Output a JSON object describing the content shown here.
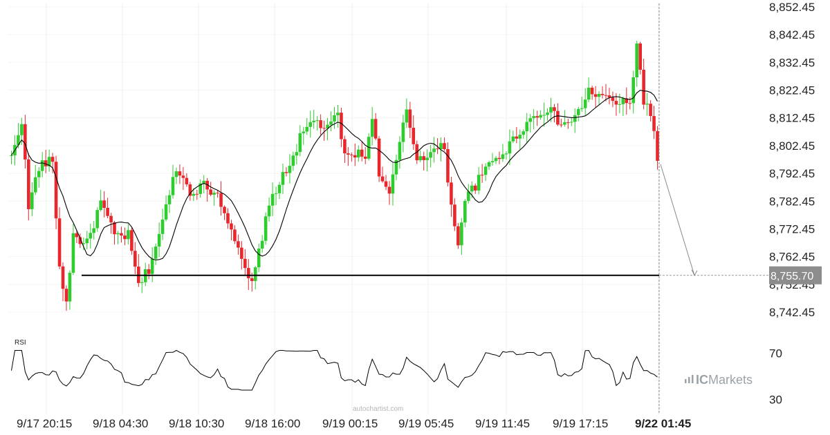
{
  "chart_data": {
    "type": "candlestick",
    "price_axis": {
      "ticks": [
        "8,852.45",
        "8,842.45",
        "8,832.45",
        "8,822.45",
        "8,812.45",
        "8,802.45",
        "8,792.45",
        "8,782.45",
        "8,772.45",
        "8,762.45",
        "8,752.45",
        "8,742.45"
      ],
      "tick_values": [
        8852.45,
        8842.45,
        8832.45,
        8822.45,
        8812.45,
        8802.45,
        8792.45,
        8782.45,
        8772.45,
        8762.45,
        8752.45,
        8742.45
      ],
      "range": [
        8737,
        8853
      ]
    },
    "time_axis": {
      "labels": [
        "9/17 20:15",
        "9/18 04:30",
        "9/18 10:30",
        "9/18 16:00",
        "9/19 00:15",
        "9/19 05:45",
        "9/19 11:45",
        "9/19 17:15",
        "9/22 01:45"
      ],
      "highlight": "9/22 01:45"
    },
    "support_level": 8755.7,
    "target_label": "8,755.70",
    "rsi": {
      "label": "RSI",
      "levels": [
        "70",
        "30"
      ],
      "level_values": [
        70,
        30
      ],
      "range": [
        20,
        80
      ]
    },
    "grid": true,
    "colors": {
      "up": "#2ecc2e",
      "down": "#e8262b",
      "sma": "#000000",
      "level": "#000000",
      "projection": "#8a8a8a"
    }
  },
  "watermark": {
    "brand_prefix": "IC",
    "brand_suffix": "Markets",
    "source": "autochartist.com"
  }
}
